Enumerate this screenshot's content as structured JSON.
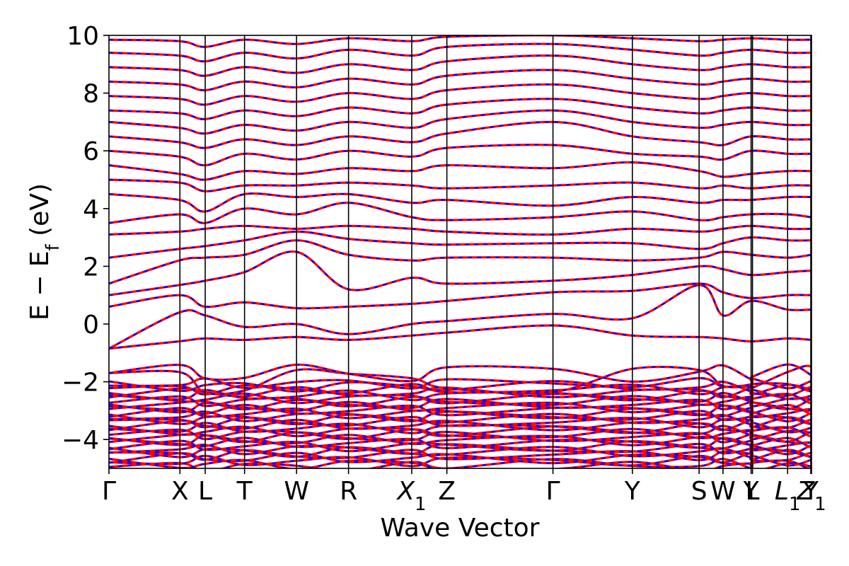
{
  "chart_data": {
    "type": "line",
    "title": "",
    "xlabel": "Wave Vector",
    "ylabel": "E − E",
    "ylabel_subscript": "f",
    "ylabel_unit": " (eV)",
    "ylim": [
      -5,
      10
    ],
    "yticks": [
      -4,
      -2,
      0,
      2,
      4,
      6,
      8,
      10
    ],
    "ytick_labels": [
      "−4",
      "−2",
      "0",
      "2",
      "4",
      "6",
      "8",
      "10"
    ],
    "xlim": [
      0,
      1
    ],
    "high_symmetry_points": [
      {
        "label": "Γ",
        "sub": "",
        "x": 0.0
      },
      {
        "label": "X",
        "sub": "",
        "x": 0.101
      },
      {
        "label": "L",
        "sub": "",
        "x": 0.137
      },
      {
        "label": "T",
        "sub": "",
        "x": 0.193
      },
      {
        "label": "W",
        "sub": "",
        "x": 0.267
      },
      {
        "label": "R",
        "sub": "",
        "x": 0.341
      },
      {
        "label": "X",
        "sub": "1",
        "x": 0.431
      },
      {
        "label": "Z",
        "sub": "",
        "x": 0.481
      },
      {
        "label": "Γ",
        "sub": "",
        "x": 0.632
      },
      {
        "label": "Y",
        "sub": "",
        "x": 0.745
      },
      {
        "label": "S",
        "sub": "",
        "x": 0.84
      },
      {
        "label": "W",
        "sub": "",
        "x": 0.874
      },
      {
        "label": "Y",
        "sub": "",
        "x": 0.914
      },
      {
        "label": "L",
        "sub": "",
        "x": 0.916
      },
      {
        "label": "L",
        "sub": "1",
        "x": 0.966
      },
      {
        "label": "Y",
        "sub": "",
        "x": 0.999
      },
      {
        "label": "Z",
        "sub": "1",
        "x": 1.0
      }
    ],
    "series": [
      {
        "color": "#ff0000",
        "style": "solid"
      },
      {
        "color": "#0000ff",
        "style": "dashed"
      }
    ],
    "conduction_bands": [
      {
        "x": [
          0,
          0.1,
          0.137,
          0.193,
          0.267,
          0.341,
          0.431,
          0.481,
          0.632,
          0.745,
          0.84,
          0.874,
          0.914,
          0.966,
          1.0
        ],
        "y": [
          -0.85,
          -0.6,
          -0.5,
          -0.55,
          -0.45,
          -0.55,
          -0.4,
          -0.3,
          -0.05,
          -0.4,
          -0.45,
          -0.5,
          -0.6,
          -0.5,
          -0.55
        ]
      },
      {
        "x": [
          0,
          0.1,
          0.137,
          0.193,
          0.267,
          0.341,
          0.431,
          0.481,
          0.632,
          0.745,
          0.84,
          0.874,
          0.914,
          0.966,
          1.0
        ],
        "y": [
          -0.85,
          0.4,
          0.3,
          -0.1,
          0.0,
          -0.35,
          0.0,
          0.1,
          0.35,
          0.2,
          1.35,
          0.3,
          0.8,
          0.5,
          0.5
        ]
      },
      {
        "x": [
          0,
          0.1,
          0.137,
          0.193,
          0.267,
          0.341,
          0.431,
          0.481,
          0.632,
          0.745,
          0.84,
          0.874,
          0.914,
          0.966,
          1.0
        ],
        "y": [
          0.6,
          1.0,
          0.6,
          0.75,
          0.55,
          0.6,
          0.7,
          0.8,
          1.1,
          1.15,
          1.4,
          1.1,
          0.9,
          1.0,
          1.0
        ]
      },
      {
        "x": [
          0,
          0.1,
          0.137,
          0.193,
          0.267,
          0.341,
          0.431,
          0.481,
          0.632,
          0.745,
          0.84,
          0.874,
          0.914,
          0.966,
          1.0
        ],
        "y": [
          1.0,
          1.35,
          1.5,
          1.8,
          2.5,
          1.2,
          1.6,
          1.4,
          1.5,
          1.7,
          2.0,
          1.9,
          1.7,
          1.8,
          1.85
        ]
      },
      {
        "x": [
          0,
          0.1,
          0.137,
          0.193,
          0.267,
          0.341,
          0.431,
          0.481,
          0.632,
          0.745,
          0.84,
          0.874,
          0.914,
          0.966,
          1.0
        ],
        "y": [
          1.4,
          2.2,
          2.3,
          2.4,
          2.9,
          2.4,
          2.2,
          2.3,
          2.3,
          2.2,
          2.3,
          2.5,
          2.4,
          2.3,
          2.4
        ]
      },
      {
        "x": [
          0,
          0.1,
          0.137,
          0.193,
          0.267,
          0.341,
          0.431,
          0.481,
          0.632,
          0.745,
          0.84,
          0.874,
          0.914,
          0.966,
          1.0
        ],
        "y": [
          2.3,
          2.6,
          2.7,
          2.9,
          3.2,
          2.95,
          2.8,
          2.75,
          2.8,
          2.8,
          2.6,
          2.8,
          3.0,
          2.9,
          2.9
        ]
      },
      {
        "x": [
          0,
          0.1,
          0.137,
          0.193,
          0.267,
          0.341,
          0.431,
          0.481,
          0.632,
          0.745,
          0.84,
          0.874,
          0.914,
          0.966,
          1.0
        ],
        "y": [
          3.1,
          3.2,
          3.3,
          3.4,
          3.3,
          3.4,
          3.3,
          3.2,
          3.1,
          3.3,
          3.2,
          3.3,
          3.4,
          3.3,
          3.3
        ]
      },
      {
        "x": [
          0,
          0.1,
          0.137,
          0.193,
          0.267,
          0.341,
          0.431,
          0.481,
          0.632,
          0.745,
          0.84,
          0.874,
          0.914,
          0.966,
          1.0
        ],
        "y": [
          3.5,
          3.8,
          3.5,
          4.0,
          3.8,
          4.2,
          3.7,
          3.6,
          3.7,
          3.9,
          3.6,
          3.7,
          3.8,
          3.8,
          3.7
        ]
      },
      {
        "x": [
          0,
          0.1,
          0.137,
          0.193,
          0.267,
          0.341,
          0.431,
          0.481,
          0.632,
          0.745,
          0.84,
          0.874,
          0.914,
          0.966,
          1.0
        ],
        "y": [
          4.5,
          4.3,
          3.9,
          4.5,
          4.4,
          4.5,
          4.2,
          4.3,
          4.1,
          4.4,
          4.2,
          4.3,
          4.3,
          4.4,
          4.4
        ]
      },
      {
        "x": [
          0,
          0.1,
          0.137,
          0.193,
          0.267,
          0.341,
          0.431,
          0.481,
          0.632,
          0.745,
          0.84,
          0.874,
          0.914,
          0.966,
          1.0
        ],
        "y": [
          5.0,
          4.9,
          4.6,
          4.8,
          4.8,
          4.9,
          4.8,
          4.7,
          4.8,
          4.9,
          4.7,
          4.8,
          4.7,
          4.8,
          4.8
        ]
      },
      {
        "x": [
          0,
          0.1,
          0.137,
          0.193,
          0.267,
          0.341,
          0.431,
          0.481,
          0.632,
          0.745,
          0.84,
          0.874,
          0.914,
          0.966,
          1.0
        ],
        "y": [
          5.5,
          5.2,
          5.0,
          5.3,
          5.2,
          5.4,
          5.3,
          5.5,
          5.4,
          5.6,
          5.3,
          5.1,
          5.2,
          5.3,
          5.3
        ]
      },
      {
        "x": [
          0,
          0.1,
          0.137,
          0.193,
          0.267,
          0.341,
          0.431,
          0.481,
          0.632,
          0.745,
          0.84,
          0.874,
          0.914,
          0.966,
          1.0
        ],
        "y": [
          6.0,
          5.8,
          5.5,
          5.9,
          5.7,
          6.0,
          5.8,
          6.1,
          6.2,
          5.9,
          5.8,
          5.7,
          6.0,
          5.9,
          5.9
        ]
      },
      {
        "x": [
          0,
          0.1,
          0.137,
          0.193,
          0.267,
          0.341,
          0.431,
          0.481,
          0.632,
          0.745,
          0.84,
          0.874,
          0.914,
          0.966,
          1.0
        ],
        "y": [
          6.5,
          6.3,
          6.1,
          6.4,
          6.2,
          6.5,
          6.3,
          6.6,
          7.0,
          6.5,
          6.3,
          6.2,
          6.5,
          6.4,
          6.4
        ]
      },
      {
        "x": [
          0,
          0.1,
          0.137,
          0.193,
          0.267,
          0.341,
          0.431,
          0.481,
          0.632,
          0.745,
          0.84,
          0.874,
          0.914,
          0.966,
          1.0
        ],
        "y": [
          7.0,
          6.8,
          6.6,
          6.9,
          6.7,
          7.0,
          6.8,
          7.1,
          7.4,
          7.0,
          6.8,
          6.9,
          7.0,
          6.9,
          6.9
        ]
      },
      {
        "x": [
          0,
          0.1,
          0.137,
          0.193,
          0.267,
          0.341,
          0.431,
          0.481,
          0.632,
          0.745,
          0.84,
          0.874,
          0.914,
          0.966,
          1.0
        ],
        "y": [
          7.4,
          7.3,
          7.1,
          7.4,
          7.2,
          7.5,
          7.3,
          7.6,
          7.8,
          7.5,
          7.3,
          7.4,
          7.5,
          7.4,
          7.4
        ]
      },
      {
        "x": [
          0,
          0.1,
          0.137,
          0.193,
          0.267,
          0.341,
          0.431,
          0.481,
          0.632,
          0.745,
          0.84,
          0.874,
          0.914,
          0.966,
          1.0
        ],
        "y": [
          7.9,
          7.8,
          7.6,
          7.9,
          7.7,
          8.0,
          7.8,
          8.1,
          8.3,
          8.0,
          7.8,
          7.9,
          8.0,
          7.9,
          7.9
        ]
      },
      {
        "x": [
          0,
          0.1,
          0.137,
          0.193,
          0.267,
          0.341,
          0.431,
          0.481,
          0.632,
          0.745,
          0.84,
          0.874,
          0.914,
          0.966,
          1.0
        ],
        "y": [
          8.4,
          8.3,
          8.1,
          8.4,
          8.2,
          8.5,
          8.3,
          8.6,
          8.8,
          8.5,
          8.3,
          8.4,
          8.5,
          8.4,
          8.4
        ]
      },
      {
        "x": [
          0,
          0.1,
          0.137,
          0.193,
          0.267,
          0.341,
          0.431,
          0.481,
          0.632,
          0.745,
          0.84,
          0.874,
          0.914,
          0.966,
          1.0
        ],
        "y": [
          8.9,
          8.8,
          8.6,
          8.9,
          8.7,
          9.0,
          8.8,
          9.1,
          9.3,
          9.0,
          8.8,
          8.9,
          9.0,
          8.9,
          8.9
        ]
      },
      {
        "x": [
          0,
          0.1,
          0.137,
          0.193,
          0.267,
          0.341,
          0.431,
          0.481,
          0.632,
          0.745,
          0.84,
          0.874,
          0.914,
          0.966,
          1.0
        ],
        "y": [
          9.4,
          9.3,
          9.1,
          9.4,
          9.2,
          9.5,
          9.3,
          9.6,
          9.7,
          9.5,
          9.3,
          9.4,
          9.5,
          9.4,
          9.4
        ]
      },
      {
        "x": [
          0,
          0.1,
          0.137,
          0.193,
          0.267,
          0.341,
          0.431,
          0.481,
          0.632,
          0.745,
          0.84,
          0.874,
          0.914,
          0.966,
          1.0
        ],
        "y": [
          9.85,
          9.8,
          9.6,
          9.85,
          9.7,
          9.9,
          9.8,
          9.95,
          10.0,
          9.9,
          9.8,
          9.85,
          9.9,
          9.85,
          9.85
        ]
      }
    ],
    "valence_manifold": {
      "top": -1.5,
      "dense_top": -2.0,
      "bottom": -5.0,
      "band_count": 30
    }
  }
}
